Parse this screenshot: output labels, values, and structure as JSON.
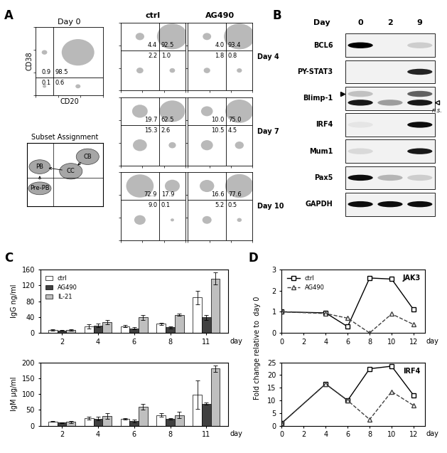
{
  "panel_labels": [
    "A",
    "B",
    "C",
    "D"
  ],
  "chart_data": [
    {
      "type": "flow_quadrant",
      "title": "Day 0",
      "xlabel": "CD20",
      "ylabel": "CD38",
      "log": true,
      "xlim": [
        1,
        1000
      ],
      "ylim": [
        1,
        1000
      ],
      "xticks": [
        1,
        10,
        100,
        1000
      ],
      "yticks": [
        1,
        10,
        100,
        1000
      ],
      "tick_labels": false,
      "gate": {
        "x": 6,
        "y": 6
      },
      "quadrants": {
        "upper_left": 0.9,
        "upper_right": 98.5,
        "lower_left": 0.1,
        "lower_right": 0.6
      }
    },
    {
      "type": "flow_grid",
      "column_titles": [
        "ctrl",
        "AG490"
      ],
      "row_titles": [
        "Day 4",
        "Day 7",
        "Day 10"
      ],
      "log": true,
      "xlim": [
        1,
        1000
      ],
      "ylim": [
        1,
        1000
      ],
      "xticks": [
        1,
        10,
        100,
        1000
      ],
      "yticks": [
        1,
        10,
        100,
        1000
      ],
      "tick_labels": false,
      "gate": {
        "x": 60,
        "y": 60
      },
      "plots": [
        [
          {
            "upper_left": 4.4,
            "upper_right": 92.5,
            "lower_left": 2.2,
            "lower_right": 1.0
          },
          {
            "upper_left": 4.0,
            "upper_right": 93.4,
            "lower_left": 1.8,
            "lower_right": 0.8
          }
        ],
        [
          {
            "upper_left": 19.7,
            "upper_right": 62.5,
            "lower_left": 15.3,
            "lower_right": 2.6
          },
          {
            "upper_left": 10.0,
            "upper_right": 75.0,
            "lower_left": 10.5,
            "lower_right": 4.5
          }
        ],
        [
          {
            "upper_left": 72.9,
            "upper_right": 17.9,
            "lower_left": 9.0,
            "lower_right": 0.1
          },
          {
            "upper_left": 16.6,
            "upper_right": 77.6,
            "lower_left": 5.2,
            "lower_right": 0.5
          }
        ]
      ]
    },
    {
      "type": "subset_diagram",
      "title": "Subset Assignment",
      "subsets": [
        "CB",
        "CC",
        "PB",
        "Pre-PB"
      ]
    },
    {
      "type": "blot",
      "columns_title": "Day",
      "columns": [
        "0",
        "2",
        "9"
      ],
      "rows": [
        {
          "label": "BCL6",
          "bands": [
            [
              1.0,
              0.0,
              0.15
            ]
          ]
        },
        {
          "label": "PY-STAT3",
          "bands": [
            [
              0.0,
              0.0,
              0.85
            ]
          ]
        },
        {
          "label": "Blimp-1",
          "bands": [
            [
              0.2,
              0.0,
              0.6
            ],
            [
              0.9,
              0.35,
              0.9
            ]
          ],
          "annotation": "n.s."
        },
        {
          "label": "IRF4",
          "bands": [
            [
              0.05,
              0.0,
              0.95
            ]
          ]
        },
        {
          "label": "Mum1",
          "bands": [
            [
              0.1,
              0.0,
              0.9
            ]
          ]
        },
        {
          "label": "Pax5",
          "bands": [
            [
              0.95,
              0.25,
              0.15
            ]
          ]
        },
        {
          "label": "GAPDH",
          "bands": [
            [
              0.95,
              0.95,
              0.95
            ]
          ]
        }
      ]
    },
    {
      "type": "bar",
      "ylabel": "IgG ng/ml",
      "xlabel": "day",
      "categories": [
        "2",
        "4",
        "6",
        "8",
        "11"
      ],
      "ylim": [
        0,
        160
      ],
      "yticks": [
        0,
        40,
        80,
        120,
        160
      ],
      "legend": "upper left",
      "series": [
        {
          "name": "ctrl",
          "color": "#ffffff",
          "values": [
            7,
            17,
            17,
            23,
            90
          ],
          "errors": [
            2,
            5,
            3,
            3,
            17
          ]
        },
        {
          "name": "AG490",
          "color": "#404040",
          "values": [
            6,
            19,
            12,
            14,
            39
          ],
          "errors": [
            1,
            4,
            3,
            3,
            6
          ]
        },
        {
          "name": "IL-21",
          "color": "#bfbfbf",
          "values": [
            8,
            27,
            39,
            46,
            137
          ],
          "errors": [
            2,
            5,
            7,
            3,
            15
          ]
        }
      ]
    },
    {
      "type": "bar",
      "ylabel": "IgM µg/ml",
      "xlabel": "day",
      "categories": [
        "2",
        "4",
        "6",
        "8",
        "11"
      ],
      "ylim": [
        0,
        200
      ],
      "yticks": [
        0,
        50,
        100,
        150,
        200
      ],
      "series": [
        {
          "name": "ctrl",
          "color": "#ffffff",
          "values": [
            14,
            24,
            22,
            34,
            99
          ],
          "errors": [
            2,
            5,
            2,
            6,
            45
          ]
        },
        {
          "name": "AG490",
          "color": "#404040",
          "values": [
            10,
            23,
            15,
            22,
            70
          ],
          "errors": [
            1,
            5,
            4,
            2,
            3
          ]
        },
        {
          "name": "IL-21",
          "color": "#bfbfbf",
          "values": [
            12,
            31,
            61,
            34,
            181
          ],
          "errors": [
            3,
            8,
            9,
            10,
            10
          ]
        }
      ]
    },
    {
      "type": "line",
      "title": "JAK3",
      "xlabel": "day",
      "ylabel": "Fold change relative to  day 0",
      "x": [
        0,
        4,
        6,
        8,
        10,
        12
      ],
      "xlim": [
        0,
        13
      ],
      "xticks": [
        0,
        2,
        4,
        6,
        8,
        10,
        12
      ],
      "ylim": [
        0,
        3
      ],
      "yticks": [
        0,
        1,
        2,
        3
      ],
      "legend": "upper left",
      "series": [
        {
          "name": "ctrl",
          "color": "#000000",
          "marker": "square",
          "line_style": "solid",
          "values": [
            1,
            0.95,
            0.3,
            2.6,
            2.55,
            1.1
          ]
        },
        {
          "name": "AG490",
          "color": "#404040",
          "marker": "triangle",
          "line_style": "dashed",
          "values": [
            1,
            0.92,
            0.7,
            0,
            0.9,
            0.4
          ]
        }
      ]
    },
    {
      "type": "line",
      "title": "IRF4",
      "xlabel": "day",
      "x": [
        0,
        4,
        6,
        8,
        10,
        12
      ],
      "xlim": [
        0,
        13
      ],
      "xticks": [
        0,
        2,
        4,
        6,
        8,
        10,
        12
      ],
      "ylim": [
        0,
        25
      ],
      "yticks": [
        0,
        5,
        10,
        15,
        20,
        25
      ],
      "series": [
        {
          "name": "ctrl",
          "color": "#000000",
          "marker": "square",
          "line_style": "solid",
          "values": [
            1,
            16.5,
            10,
            22.5,
            23.5,
            12
          ]
        },
        {
          "name": "AG490",
          "color": "#404040",
          "marker": "triangle",
          "line_style": "dashed",
          "values": [
            1,
            16.5,
            10,
            2.5,
            13.5,
            8
          ]
        }
      ]
    }
  ]
}
